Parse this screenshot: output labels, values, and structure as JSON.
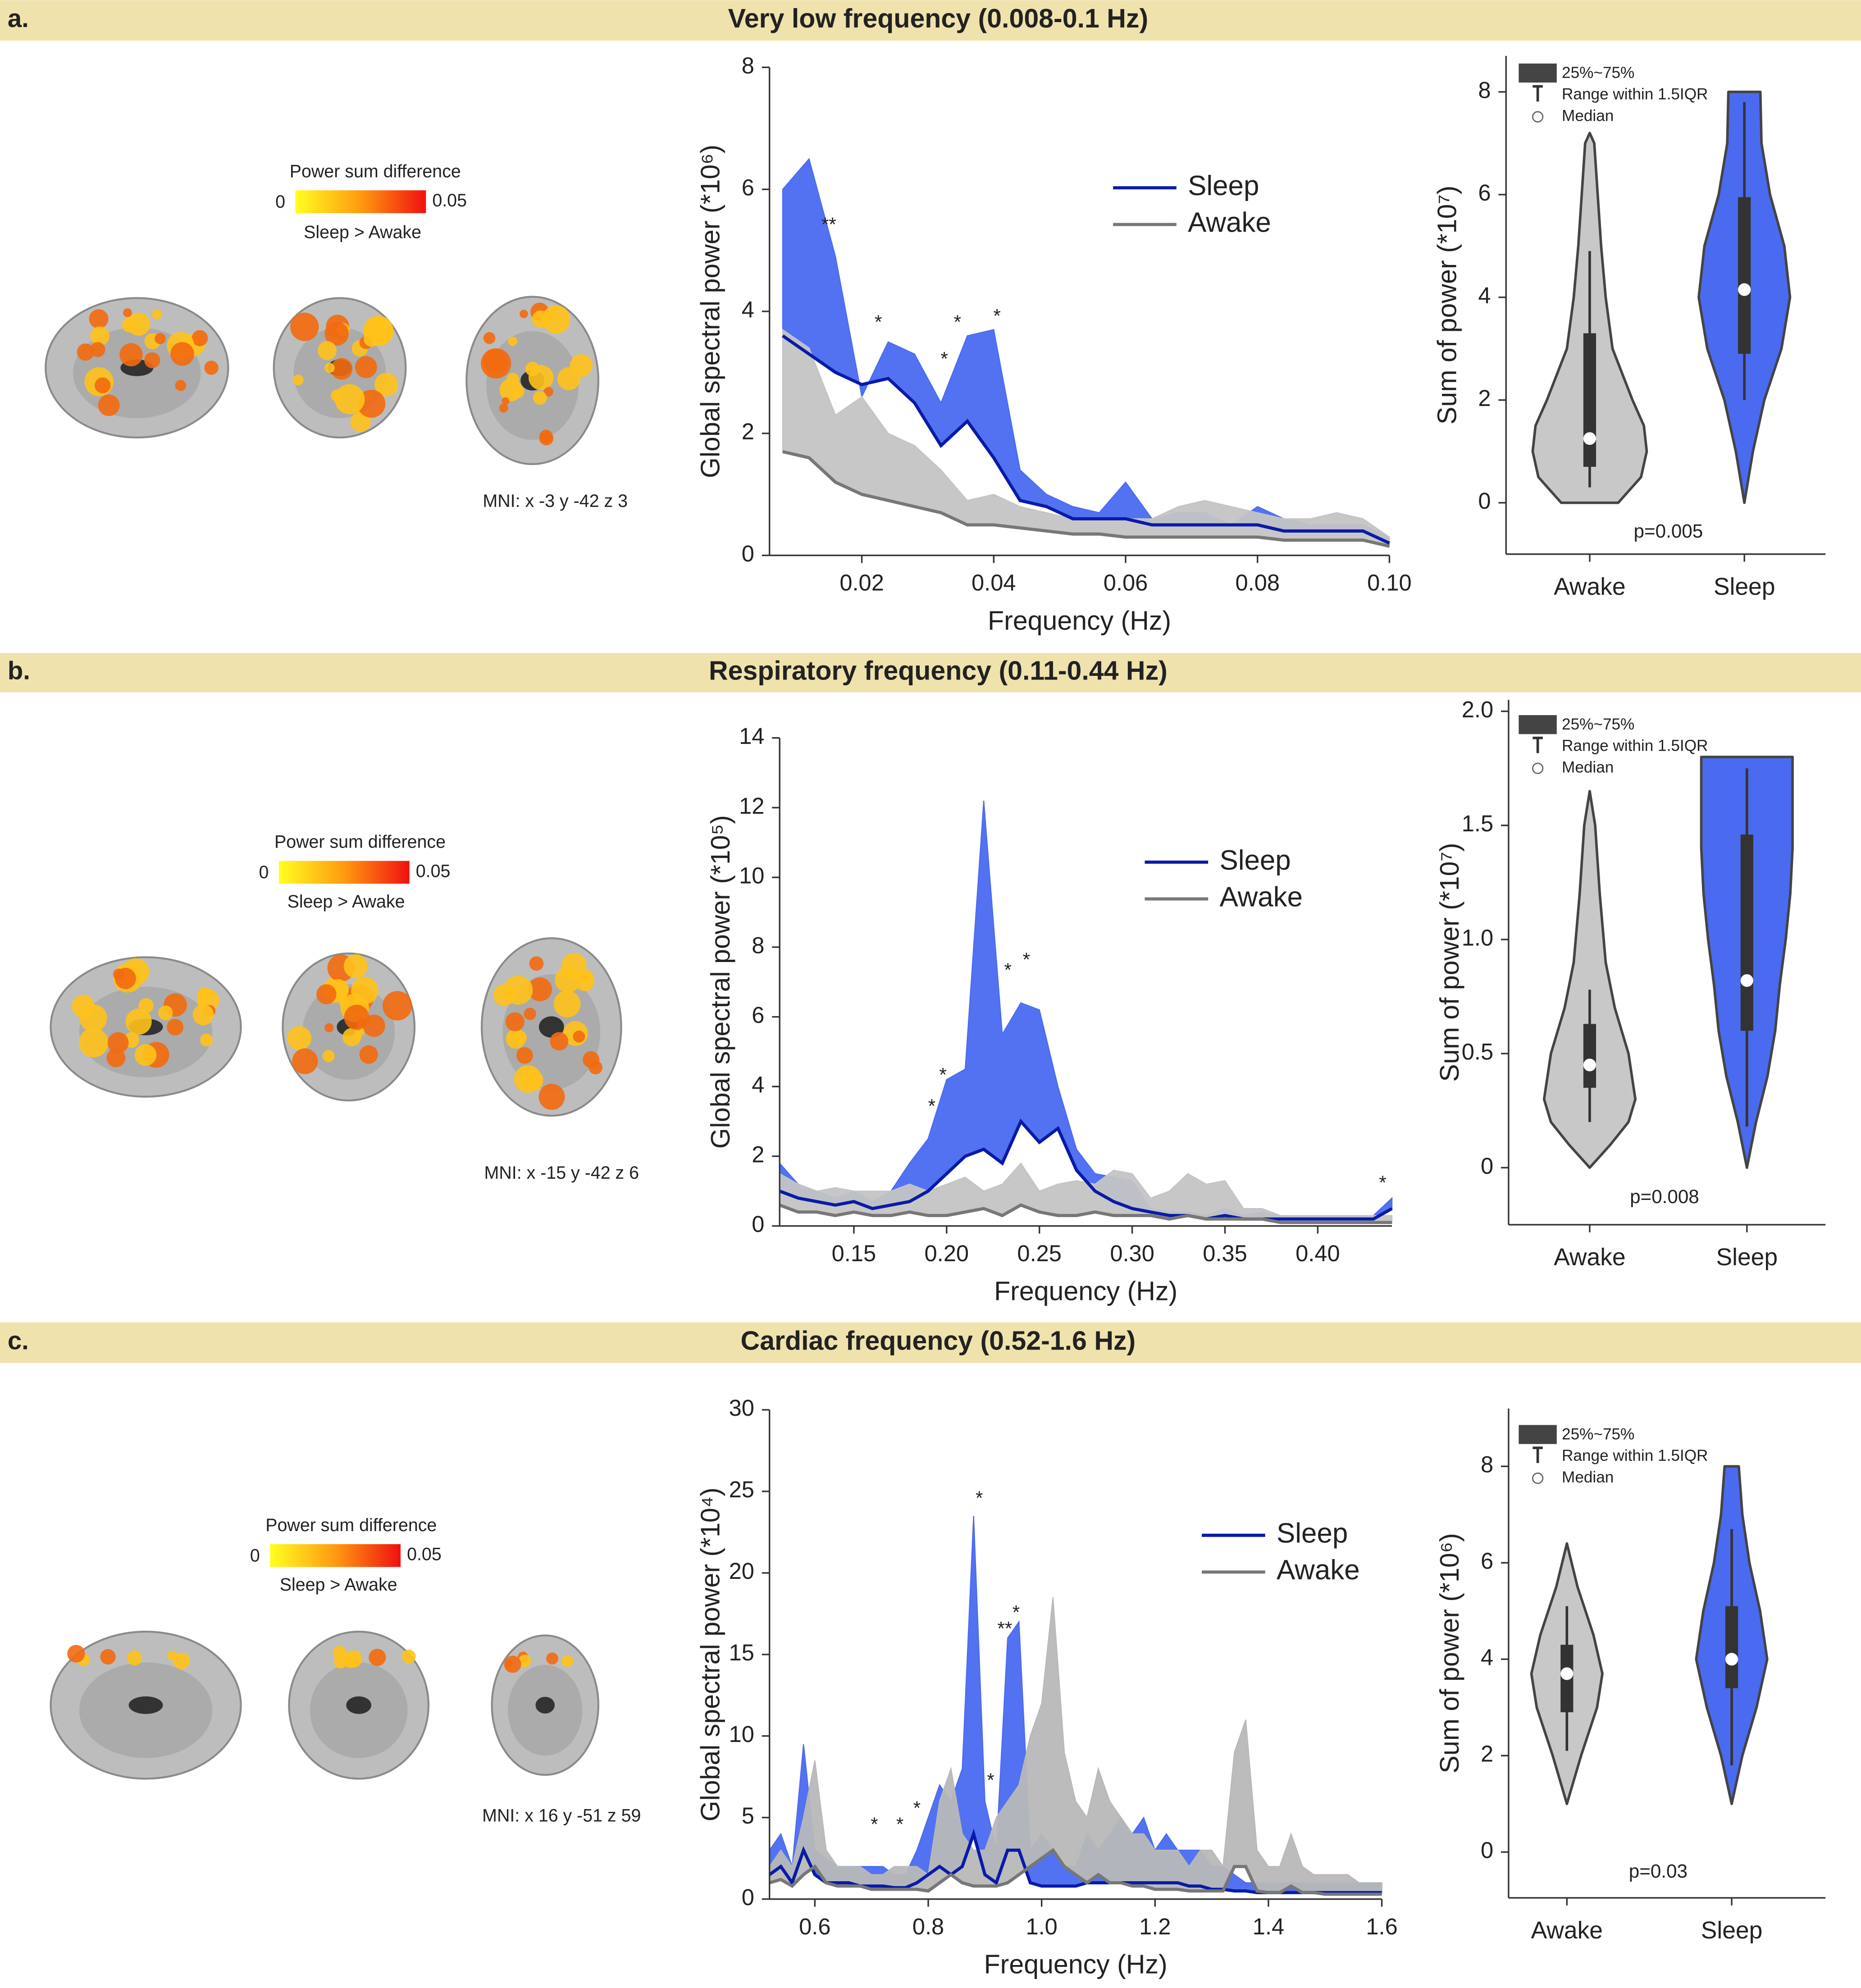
{
  "sections": [
    {
      "label": "a.",
      "title": "Very low frequency (0.008-0.1 Hz)",
      "colorbar": {
        "title": "Power sum difference",
        "lim": [
          0,
          0.05
        ],
        "note": "Sleep > Awake"
      },
      "mni": "MNI: x -3 y -42 z 3"
    },
    {
      "label": "b.",
      "title": "Respiratory frequency (0.11-0.44 Hz)",
      "colorbar": {
        "title": "Power sum difference",
        "lim": [
          0,
          0.05
        ],
        "note": "Sleep > Awake"
      },
      "mni": "MNI: x -15 y -42 z 6"
    },
    {
      "label": "c.",
      "title": "Cardiac frequency (0.52-1.6 Hz)",
      "colorbar": {
        "title": "Power sum difference",
        "lim": [
          0,
          0.05
        ],
        "note": "Sleep > Awake"
      },
      "mni": "MNI: x 16 y -51 z 59"
    }
  ],
  "chart_data": [
    {
      "type": "line",
      "x_label": "Frequency (Hz)",
      "y_label": "Global spectral power (*10⁶)",
      "x": [
        0.008,
        0.012,
        0.016,
        0.02,
        0.024,
        0.028,
        0.032,
        0.036,
        0.04,
        0.044,
        0.048,
        0.052,
        0.056,
        0.06,
        0.064,
        0.068,
        0.072,
        0.076,
        0.08,
        0.084,
        0.088,
        0.092,
        0.096,
        0.1
      ],
      "series": [
        {
          "name": "Sleep",
          "color": "#0a1aa8",
          "fill": "#4a6af0",
          "values": [
            3.6,
            3.3,
            3.0,
            2.8,
            2.9,
            2.5,
            1.8,
            2.2,
            1.6,
            0.9,
            0.8,
            0.6,
            0.6,
            0.6,
            0.5,
            0.5,
            0.5,
            0.5,
            0.5,
            0.4,
            0.4,
            0.4,
            0.4,
            0.2
          ],
          "upper": [
            6.0,
            6.5,
            4.9,
            2.6,
            3.5,
            3.3,
            2.5,
            3.6,
            3.7,
            1.4,
            1.0,
            0.8,
            0.7,
            1.2,
            0.6,
            0.7,
            0.7,
            0.5,
            0.8,
            0.6,
            0.5,
            0.5,
            0.5,
            0.3
          ]
        },
        {
          "name": "Awake",
          "color": "#777777",
          "fill": "#c4c4c4",
          "values": [
            1.7,
            1.6,
            1.2,
            1.0,
            0.9,
            0.8,
            0.7,
            0.5,
            0.5,
            0.45,
            0.4,
            0.35,
            0.35,
            0.3,
            0.3,
            0.3,
            0.3,
            0.3,
            0.3,
            0.25,
            0.25,
            0.25,
            0.25,
            0.15
          ],
          "upper": [
            3.7,
            3.4,
            2.3,
            2.6,
            2.0,
            1.8,
            1.4,
            0.9,
            1.0,
            0.8,
            0.7,
            0.6,
            0.6,
            0.6,
            0.6,
            0.8,
            0.9,
            0.8,
            0.7,
            0.6,
            0.6,
            0.7,
            0.6,
            0.3
          ]
        }
      ],
      "xlim": [
        0.006,
        0.1
      ],
      "xticks": [
        0.02,
        0.04,
        0.06,
        0.08,
        {
          "value": 0.1,
          "label": "0.10"
        }
      ],
      "ylim": [
        0,
        8
      ],
      "yticks": [
        0,
        2,
        4,
        6,
        8
      ],
      "annotations": [
        {
          "text": "**",
          "x": 0.015,
          "y": 5.4
        },
        {
          "text": "*",
          "x": 0.0225,
          "y": 3.8
        },
        {
          "text": "*",
          "x": 0.0325,
          "y": 3.2
        },
        {
          "text": "*",
          "x": 0.0345,
          "y": 3.8
        },
        {
          "text": "*",
          "x": 0.0405,
          "y": 3.9
        }
      ]
    },
    {
      "type": "violin",
      "y_label": "Sum of power (*10⁷)",
      "categories": [
        "Awake",
        "Sleep"
      ],
      "ylim": [
        -1,
        8.7
      ],
      "yticks": [
        0,
        2,
        4,
        6,
        8
      ],
      "violins": [
        {
          "color": "#c8c8c8",
          "q1": 0.7,
          "median": 1.25,
          "q3": 3.3,
          "whisker_low": 0.3,
          "whisker_high": 4.9,
          "density_y": [
            0,
            0.5,
            1,
            1.5,
            2,
            3,
            4,
            5,
            6,
            7,
            7.2
          ],
          "density_width": [
            0.5,
            0.9,
            1.0,
            0.95,
            0.75,
            0.4,
            0.28,
            0.2,
            0.14,
            0.08,
            0
          ]
        },
        {
          "color": "#4a6af0",
          "q1": 2.9,
          "median": 4.15,
          "q3": 5.95,
          "whisker_low": 2.0,
          "whisker_high": 7.8,
          "density_y": [
            0,
            1,
            2,
            3,
            4,
            5,
            6,
            7,
            8
          ],
          "density_width": [
            0,
            0.15,
            0.35,
            0.65,
            0.8,
            0.7,
            0.45,
            0.3,
            0.28
          ]
        }
      ],
      "legend": [
        "25%~75%",
        "Range within 1.5IQR",
        "Median"
      ],
      "annotation": "p=0.005"
    },
    {
      "type": "line",
      "x_label": "Frequency (Hz)",
      "y_label": "Global spectral power (*10⁵)",
      "x": [
        0.11,
        0.12,
        0.13,
        0.14,
        0.15,
        0.16,
        0.17,
        0.18,
        0.19,
        0.2,
        0.21,
        0.22,
        0.23,
        0.24,
        0.25,
        0.26,
        0.27,
        0.28,
        0.29,
        0.3,
        0.31,
        0.32,
        0.33,
        0.34,
        0.35,
        0.36,
        0.37,
        0.38,
        0.39,
        0.4,
        0.41,
        0.42,
        0.43,
        0.44
      ],
      "series": [
        {
          "name": "Sleep",
          "color": "#0a1aa8",
          "fill": "#4a6af0",
          "values": [
            1.0,
            0.8,
            0.7,
            0.6,
            0.7,
            0.5,
            0.6,
            0.7,
            1.0,
            1.5,
            2.0,
            2.2,
            1.8,
            3.0,
            2.4,
            2.8,
            1.6,
            1.0,
            0.7,
            0.5,
            0.4,
            0.3,
            0.3,
            0.2,
            0.3,
            0.2,
            0.2,
            0.2,
            0.2,
            0.2,
            0.2,
            0.2,
            0.2,
            0.5
          ],
          "upper": [
            1.8,
            1.2,
            1.0,
            0.8,
            1.0,
            0.7,
            1.0,
            1.8,
            2.5,
            4.2,
            4.5,
            12.2,
            5.5,
            6.4,
            6.2,
            4.0,
            2.2,
            1.5,
            1.4,
            1.3,
            0.5,
            0.4,
            0.4,
            0.3,
            0.5,
            0.3,
            0.4,
            0.3,
            0.3,
            0.3,
            0.3,
            0.3,
            0.3,
            0.8
          ]
        },
        {
          "name": "Awake",
          "color": "#777777",
          "fill": "#c4c4c4",
          "values": [
            0.6,
            0.4,
            0.4,
            0.3,
            0.4,
            0.3,
            0.3,
            0.4,
            0.3,
            0.3,
            0.4,
            0.5,
            0.3,
            0.6,
            0.4,
            0.3,
            0.3,
            0.4,
            0.3,
            0.3,
            0.3,
            0.2,
            0.3,
            0.2,
            0.2,
            0.2,
            0.2,
            0.1,
            0.1,
            0.1,
            0.1,
            0.1,
            0.1,
            0.1
          ],
          "upper": [
            1.5,
            1.2,
            1.0,
            1.1,
            1.0,
            1.0,
            1.0,
            1.2,
            1.0,
            1.2,
            1.4,
            1.0,
            1.2,
            1.8,
            1.0,
            1.2,
            1.3,
            1.2,
            1.6,
            1.5,
            0.8,
            1.0,
            1.5,
            1.2,
            1.3,
            0.5,
            0.5,
            0.3,
            0.3,
            0.3,
            0.3,
            0.3,
            0.3,
            0.3
          ]
        }
      ],
      "xlim": [
        0.11,
        0.44
      ],
      "xticks": [
        0.15,
        {
          "value": 0.2,
          "label": "0.20"
        },
        0.25,
        {
          "value": 0.3,
          "label": "0.30"
        },
        0.35,
        {
          "value": 0.4,
          "label": "0.40"
        }
      ],
      "ylim": [
        0,
        14
      ],
      "yticks": [
        0,
        2,
        4,
        6,
        8,
        10,
        12,
        14
      ],
      "annotations": [
        {
          "text": "*",
          "x": 0.192,
          "y": 3.4
        },
        {
          "text": "*",
          "x": 0.198,
          "y": 4.3
        },
        {
          "text": "*",
          "x": 0.233,
          "y": 7.3
        },
        {
          "text": "*",
          "x": 0.243,
          "y": 7.6
        },
        {
          "text": "*",
          "x": 0.435,
          "y": 1.2
        }
      ]
    },
    {
      "type": "violin",
      "y_label": "Sum of power (*10⁷)",
      "categories": [
        "Awake",
        "Sleep"
      ],
      "ylim": [
        -0.25,
        2.05
      ],
      "yticks": [
        0,
        0.5,
        {
          "value": 1,
          "label": "1.0"
        },
        1.5,
        {
          "value": 2,
          "label": "2.0"
        }
      ],
      "violins": [
        {
          "color": "#c8c8c8",
          "q1": 0.35,
          "median": 0.45,
          "q3": 0.63,
          "whisker_low": 0.2,
          "whisker_high": 0.78,
          "density_y": [
            0,
            0.1,
            0.2,
            0.3,
            0.5,
            0.7,
            0.9,
            1.2,
            1.5,
            1.65
          ],
          "density_width": [
            0,
            0.45,
            0.85,
            1.0,
            0.85,
            0.55,
            0.35,
            0.22,
            0.12,
            0
          ]
        },
        {
          "color": "#4a6af0",
          "q1": 0.6,
          "median": 0.82,
          "q3": 1.46,
          "whisker_low": 0.18,
          "whisker_high": 1.75,
          "density_y": [
            0,
            0.2,
            0.4,
            0.6,
            0.8,
            1.0,
            1.2,
            1.4,
            1.6,
            1.8
          ],
          "density_width": [
            0,
            0.2,
            0.45,
            0.62,
            0.72,
            0.85,
            0.95,
            1.0,
            1.0,
            1.0
          ]
        }
      ],
      "legend": [
        "25%~75%",
        "Range within 1.5IQR",
        "Median"
      ],
      "annotation": "p=0.008"
    },
    {
      "type": "line",
      "x_label": "Frequency (Hz)",
      "y_label": "Global spectral power (*10⁴)",
      "x": [
        0.52,
        0.54,
        0.56,
        0.58,
        0.6,
        0.62,
        0.64,
        0.66,
        0.68,
        0.7,
        0.72,
        0.74,
        0.76,
        0.78,
        0.8,
        0.82,
        0.84,
        0.86,
        0.88,
        0.9,
        0.92,
        0.94,
        0.96,
        0.98,
        1.0,
        1.02,
        1.04,
        1.06,
        1.08,
        1.1,
        1.12,
        1.14,
        1.16,
        1.18,
        1.2,
        1.22,
        1.24,
        1.26,
        1.28,
        1.3,
        1.32,
        1.34,
        1.36,
        1.38,
        1.4,
        1.42,
        1.44,
        1.46,
        1.48,
        1.5,
        1.52,
        1.54,
        1.56,
        1.58,
        1.6
      ],
      "series": [
        {
          "name": "Sleep",
          "color": "#0a1aa8",
          "fill": "#4a6af0",
          "values": [
            1.5,
            2,
            1,
            3,
            1.5,
            1,
            1,
            1,
            0.8,
            0.8,
            0.8,
            0.7,
            0.7,
            1,
            1.5,
            2,
            1.5,
            2,
            4,
            1.5,
            1,
            3,
            3,
            1,
            0.8,
            0.8,
            0.8,
            0.8,
            1,
            1,
            1,
            1,
            1,
            1,
            1,
            1,
            1,
            0.8,
            0.8,
            0.6,
            0.6,
            0.5,
            0.5,
            0.4,
            0.4,
            0.4,
            0.4,
            0.4,
            0.4,
            0.4,
            0.4,
            0.4,
            0.4,
            0.4,
            0.4
          ],
          "upper": [
            3,
            4,
            2,
            9.5,
            3,
            2.5,
            2,
            2,
            2,
            2,
            2,
            1.5,
            1.5,
            3,
            5,
            7,
            6,
            8,
            23.5,
            6,
            3,
            16,
            17,
            3,
            4,
            3,
            2,
            2,
            4,
            3,
            4,
            5,
            4,
            5,
            3,
            4,
            3,
            3,
            3,
            2,
            2,
            1.5,
            1,
            1,
            1,
            1,
            1,
            1,
            1,
            1,
            1,
            1,
            1,
            1,
            1
          ]
        },
        {
          "name": "Awake",
          "color": "#777777",
          "fill": "#b8b8b8",
          "values": [
            1,
            1.2,
            0.8,
            1.5,
            2,
            1,
            0.8,
            0.8,
            0.8,
            0.6,
            0.6,
            0.6,
            0.6,
            0.6,
            0.5,
            1,
            1.5,
            1,
            0.8,
            0.8,
            0.8,
            1,
            1.5,
            2,
            2.5,
            3,
            2,
            1.5,
            1,
            1.5,
            1,
            1,
            0.8,
            0.8,
            0.6,
            0.6,
            0.6,
            0.5,
            0.5,
            0.5,
            0.5,
            2,
            2,
            0.5,
            0.4,
            0.4,
            0.8,
            0.4,
            0.4,
            0.3,
            0.3,
            0.3,
            0.3,
            0.3,
            0.3
          ],
          "upper": [
            2,
            3,
            2,
            5,
            8.5,
            3,
            2,
            2,
            2,
            1.5,
            1.5,
            2,
            2,
            2,
            1.5,
            6,
            8,
            4,
            3,
            3,
            5,
            6,
            7,
            10,
            12,
            18.5,
            9,
            6,
            5,
            8,
            6,
            5,
            4,
            4,
            3,
            3,
            3,
            2,
            3,
            3,
            2,
            9,
            11,
            3,
            2,
            2,
            4,
            2,
            1.5,
            1.5,
            1.5,
            1.5,
            1,
            1,
            1
          ]
        }
      ],
      "xlim": [
        0.52,
        1.6
      ],
      "xticks": [
        0.6,
        0.8,
        {
          "value": 1,
          "label": "1.0"
        },
        1.2,
        1.4,
        1.6
      ],
      "ylim": [
        0,
        30
      ],
      "yticks": [
        0,
        5,
        10,
        15,
        20,
        25,
        30
      ],
      "annotations": [
        {
          "text": "*",
          "x": 0.705,
          "y": 4.5
        },
        {
          "text": "*",
          "x": 0.75,
          "y": 4.5
        },
        {
          "text": "*",
          "x": 0.78,
          "y": 5.5
        },
        {
          "text": "*",
          "x": 0.89,
          "y": 24.5
        },
        {
          "text": "*",
          "x": 0.91,
          "y": 7.2
        },
        {
          "text": "**",
          "x": 0.935,
          "y": 16.5
        },
        {
          "text": "*",
          "x": 0.955,
          "y": 17.5
        }
      ]
    },
    {
      "type": "violin",
      "y_label": "Sum of power (*10⁶)",
      "categories": [
        "Awake",
        "Sleep"
      ],
      "ylim": [
        -0.95,
        9.2
      ],
      "yticks": [
        0,
        2,
        4,
        6,
        8
      ],
      "violins": [
        {
          "color": "#c8c8c8",
          "q1": 2.9,
          "median": 3.7,
          "q3": 4.3,
          "whisker_low": 2.1,
          "whisker_high": 5.1,
          "density_y": [
            1,
            2,
            3,
            3.7,
            4.5,
            5.5,
            6.4
          ],
          "density_width": [
            0,
            0.4,
            0.85,
            1.0,
            0.75,
            0.3,
            0
          ]
        },
        {
          "color": "#4a6af0",
          "q1": 3.4,
          "median": 4.0,
          "q3": 5.1,
          "whisker_low": 1.8,
          "whisker_high": 6.7,
          "density_y": [
            1,
            2,
            3,
            4,
            5,
            6,
            7,
            8
          ],
          "density_width": [
            0,
            0.3,
            0.7,
            1.0,
            0.8,
            0.5,
            0.3,
            0.2
          ]
        }
      ],
      "legend": [
        "25%~75%",
        "Range within 1.5IQR",
        "Median"
      ],
      "annotation": "p=0.03"
    }
  ]
}
